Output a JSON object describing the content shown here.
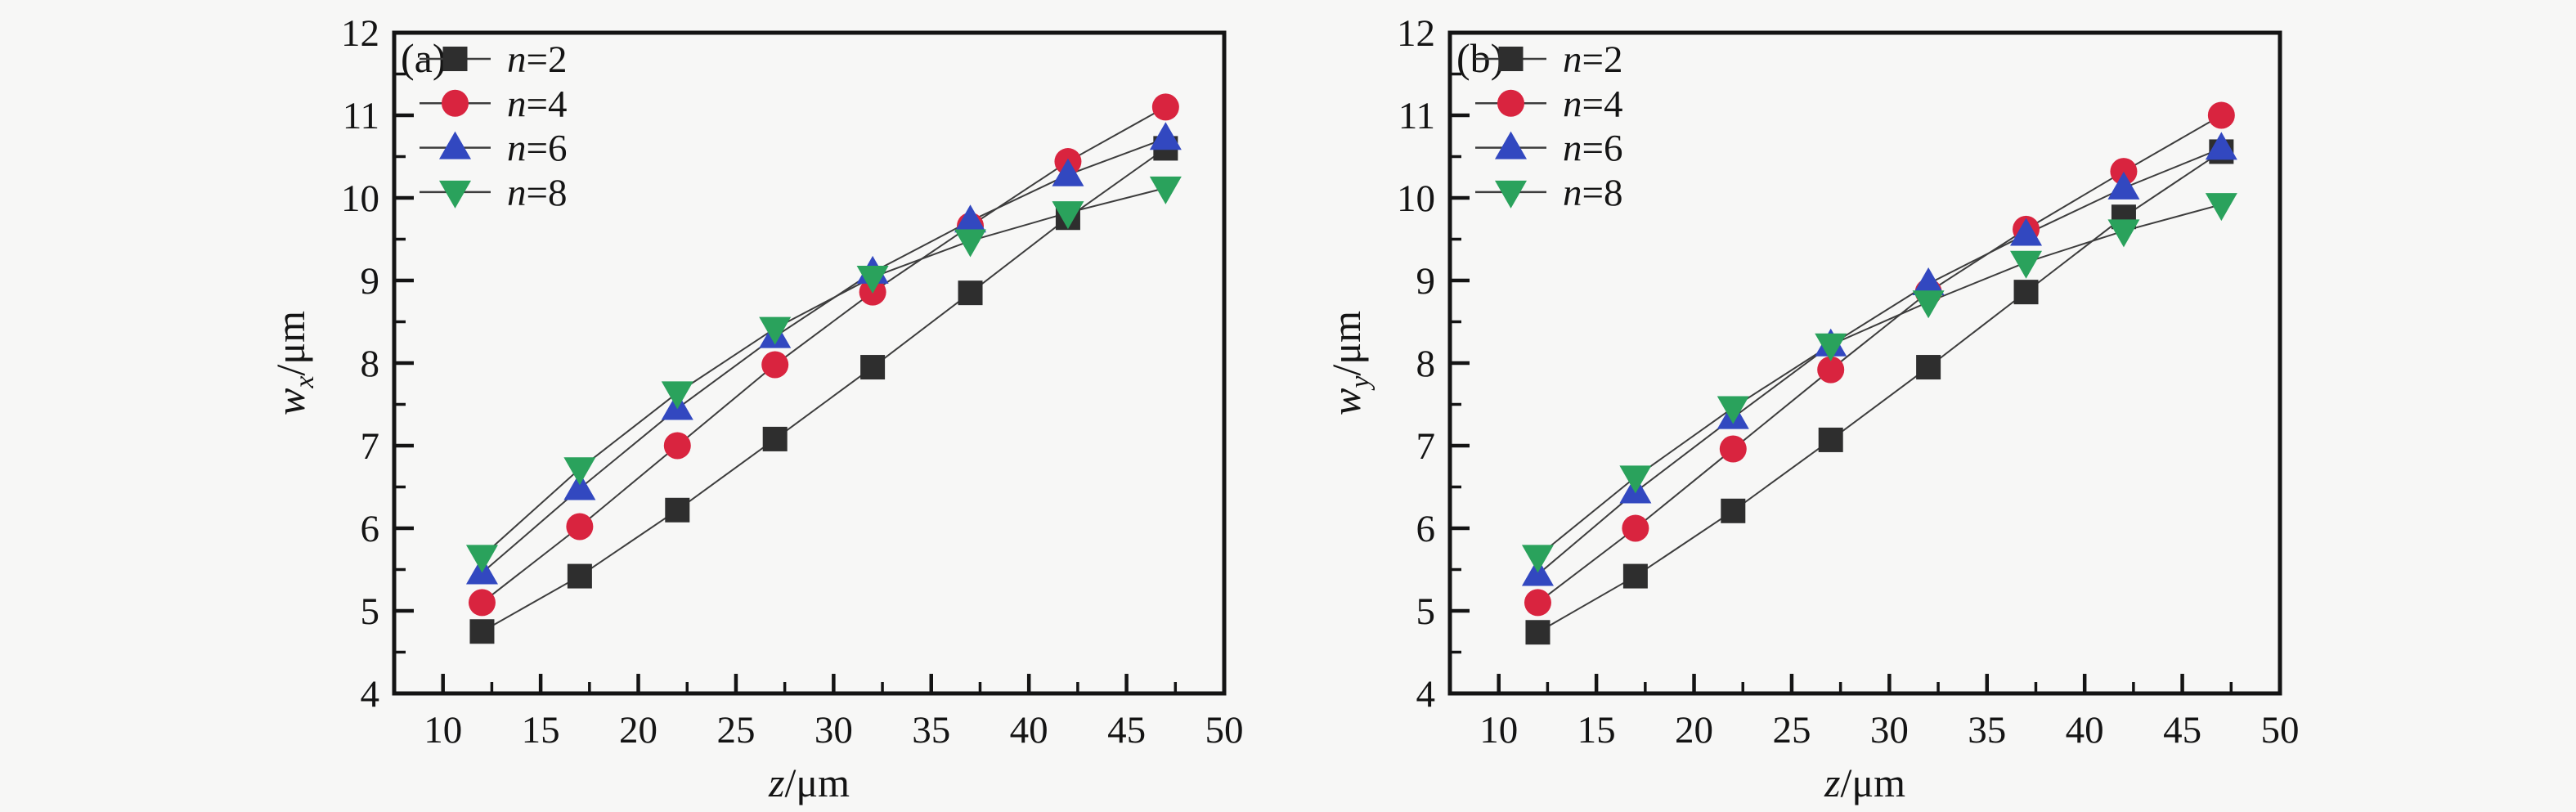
{
  "figure": {
    "background": "#f7f7f6",
    "frame_color": "#141414",
    "line_color": "#3d3d3d"
  },
  "chart_data": [
    {
      "type": "line",
      "panel_label": "(a)",
      "xlabel": {
        "variable": "z",
        "separator": "/",
        "unit": "μm"
      },
      "ylabel": {
        "variable": "w",
        "subscript": "x",
        "separator": "/",
        "unit": "μm"
      },
      "xlim": [
        7.5,
        50
      ],
      "ylim": [
        4,
        12
      ],
      "x_major_ticks": [
        10,
        15,
        20,
        25,
        30,
        35,
        40,
        45,
        50
      ],
      "x_minor_ticks": [
        12.5,
        17.5,
        22.5,
        27.5,
        32.5,
        37.5,
        42.5,
        47.5
      ],
      "y_major_ticks": [
        4,
        5,
        6,
        7,
        8,
        9,
        10,
        11,
        12
      ],
      "y_minor_ticks": [
        4.5,
        5.5,
        6.5,
        7.5,
        8.5,
        9.5,
        10.5,
        11.5
      ],
      "grid": false,
      "legend_position": "top-left",
      "x": [
        12,
        17,
        22,
        27,
        32,
        37,
        42,
        47
      ],
      "series": [
        {
          "name": "n=2",
          "marker": "square",
          "color": "#2e2e2e",
          "values": [
            4.75,
            5.42,
            6.22,
            7.08,
            7.95,
            8.85,
            9.76,
            10.6
          ]
        },
        {
          "name": "n=4",
          "marker": "circle",
          "color": "#d9243f",
          "values": [
            5.1,
            6.02,
            7.0,
            7.98,
            8.86,
            9.66,
            10.44,
            11.1
          ]
        },
        {
          "name": "n=6",
          "marker": "triangle-up",
          "color": "#3248c0",
          "values": [
            5.46,
            6.48,
            7.45,
            8.32,
            9.1,
            9.72,
            10.28,
            10.72
          ]
        },
        {
          "name": "n=8",
          "marker": "triangle-down",
          "color": "#2aa25c",
          "values": [
            5.66,
            6.72,
            7.64,
            8.42,
            9.04,
            9.48,
            9.82,
            10.12
          ]
        }
      ]
    },
    {
      "type": "line",
      "panel_label": "(b)",
      "xlabel": {
        "variable": "z",
        "separator": "/",
        "unit": "μm"
      },
      "ylabel": {
        "variable": "w",
        "subscript": "y",
        "separator": "/",
        "unit": "μm"
      },
      "xlim": [
        7.5,
        50
      ],
      "ylim": [
        4,
        12
      ],
      "x_major_ticks": [
        10,
        15,
        20,
        25,
        30,
        35,
        40,
        45,
        50
      ],
      "x_minor_ticks": [
        12.5,
        17.5,
        22.5,
        27.5,
        32.5,
        37.5,
        42.5,
        47.5
      ],
      "y_major_ticks": [
        4,
        5,
        6,
        7,
        8,
        9,
        10,
        11,
        12
      ],
      "y_minor_ticks": [
        4.5,
        5.5,
        6.5,
        7.5,
        8.5,
        9.5,
        10.5,
        11.5
      ],
      "grid": false,
      "legend_position": "top-left",
      "x": [
        12,
        17,
        22,
        27,
        32,
        37,
        42,
        47
      ],
      "series": [
        {
          "name": "n=2",
          "marker": "square",
          "color": "#2e2e2e",
          "values": [
            4.74,
            5.42,
            6.21,
            7.07,
            7.95,
            8.86,
            9.77,
            10.56
          ]
        },
        {
          "name": "n=4",
          "marker": "circle",
          "color": "#d9243f",
          "values": [
            5.1,
            6.0,
            6.96,
            7.92,
            8.86,
            9.62,
            10.32,
            11.0
          ]
        },
        {
          "name": "n=6",
          "marker": "triangle-up",
          "color": "#3248c0",
          "values": [
            5.44,
            6.44,
            7.34,
            8.22,
            8.96,
            9.56,
            10.12,
            10.6
          ]
        },
        {
          "name": "n=8",
          "marker": "triangle-down",
          "color": "#2aa25c",
          "values": [
            5.66,
            6.62,
            7.46,
            8.22,
            8.74,
            9.22,
            9.6,
            9.92
          ]
        }
      ]
    }
  ]
}
